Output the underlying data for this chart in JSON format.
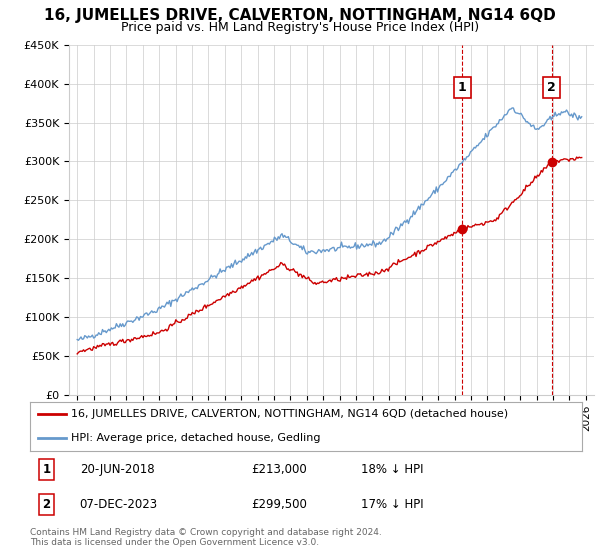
{
  "title": "16, JUMELLES DRIVE, CALVERTON, NOTTINGHAM, NG14 6QD",
  "subtitle": "Price paid vs. HM Land Registry's House Price Index (HPI)",
  "ylim": [
    0,
    450000
  ],
  "yticks": [
    0,
    50000,
    100000,
    150000,
    200000,
    250000,
    300000,
    350000,
    400000,
    450000
  ],
  "ytick_labels": [
    "£0",
    "£50K",
    "£100K",
    "£150K",
    "£200K",
    "£250K",
    "£300K",
    "£350K",
    "£400K",
    "£450K"
  ],
  "xlim": [
    1994.5,
    2026.5
  ],
  "xticks": [
    1995,
    1996,
    1997,
    1998,
    1999,
    2000,
    2001,
    2002,
    2003,
    2004,
    2005,
    2006,
    2007,
    2008,
    2009,
    2010,
    2011,
    2012,
    2013,
    2014,
    2015,
    2016,
    2017,
    2018,
    2019,
    2020,
    2021,
    2022,
    2023,
    2024,
    2025,
    2026
  ],
  "hpi_color": "#6699CC",
  "sale_color": "#CC0000",
  "marker1_date": 2018.47,
  "marker1_price": 213000,
  "marker2_date": 2023.92,
  "marker2_price": 299500,
  "legend_sale_label": "16, JUMELLES DRIVE, CALVERTON, NOTTINGHAM, NG14 6QD (detached house)",
  "legend_hpi_label": "HPI: Average price, detached house, Gedling",
  "background_color": "#FFFFFF",
  "grid_color": "#CCCCCC",
  "title_fontsize": 11,
  "subtitle_fontsize": 9,
  "footer": "Contains HM Land Registry data © Crown copyright and database right 2024.\nThis data is licensed under the Open Government Licence v3.0."
}
